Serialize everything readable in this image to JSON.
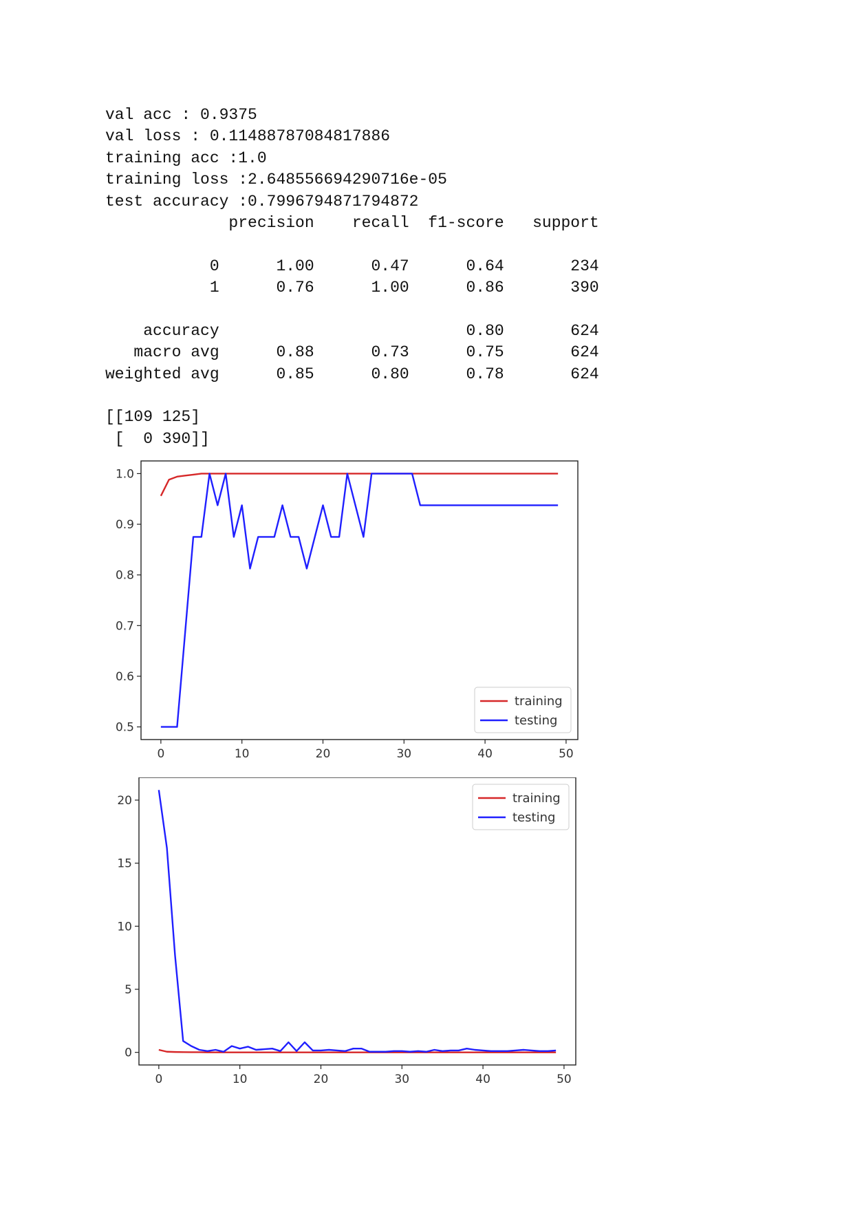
{
  "console": {
    "stats": [
      "val acc : 0.9375",
      "val loss : 0.11488787084817886",
      "training acc :1.0",
      "training loss :2.648556694290716e-05",
      "test accuracy :0.7996794871794872"
    ],
    "report": {
      "header": [
        "precision",
        "recall",
        "f1-score",
        "support"
      ],
      "rows": [
        {
          "label": "0",
          "precision": "1.00",
          "recall": "0.47",
          "f1": "0.64",
          "support": "234"
        },
        {
          "label": "1",
          "precision": "0.76",
          "recall": "1.00",
          "f1": "0.86",
          "support": "390"
        }
      ],
      "summary": [
        {
          "label": "accuracy",
          "precision": "",
          "recall": "",
          "f1": "0.80",
          "support": "624"
        },
        {
          "label": "macro avg",
          "precision": "0.88",
          "recall": "0.73",
          "f1": "0.75",
          "support": "624"
        },
        {
          "label": "weighted avg",
          "precision": "0.85",
          "recall": "0.80",
          "f1": "0.78",
          "support": "624"
        }
      ]
    },
    "matrix": [
      "[[109 125]",
      " [  0 390]]"
    ]
  },
  "chart_data": [
    {
      "type": "line",
      "title": "",
      "xlabel": "",
      "ylabel": "",
      "xlim": [
        -2.45,
        51.45
      ],
      "ylim": [
        0.475,
        1.025
      ],
      "xticks": [
        0,
        10,
        20,
        30,
        40,
        50
      ],
      "yticks": [
        0.5,
        0.6,
        0.7,
        0.8,
        0.9,
        1.0
      ],
      "ytick_labels": [
        "0.5",
        "0.6",
        "0.7",
        "0.8",
        "0.9",
        "1.0"
      ],
      "grid": false,
      "legend_position": "lower right",
      "x": [
        0,
        1,
        2,
        3,
        4,
        5,
        6,
        7,
        8,
        9,
        10,
        11,
        12,
        13,
        14,
        15,
        16,
        17,
        18,
        19,
        20,
        21,
        22,
        23,
        24,
        25,
        26,
        27,
        28,
        29,
        30,
        31,
        32,
        33,
        34,
        35,
        36,
        37,
        38,
        39,
        40,
        41,
        42,
        43,
        44,
        45,
        46,
        47,
        48,
        49
      ],
      "series": [
        {
          "name": "training",
          "color": "#d62728",
          "values": [
            0.956,
            0.988,
            0.994,
            0.996,
            0.998,
            1.0,
            1.0,
            1.0,
            1.0,
            1.0,
            1.0,
            1.0,
            1.0,
            1.0,
            1.0,
            1.0,
            1.0,
            1.0,
            1.0,
            1.0,
            1.0,
            1.0,
            1.0,
            1.0,
            1.0,
            1.0,
            1.0,
            1.0,
            1.0,
            1.0,
            1.0,
            1.0,
            1.0,
            1.0,
            1.0,
            1.0,
            1.0,
            1.0,
            1.0,
            1.0,
            1.0,
            1.0,
            1.0,
            1.0,
            1.0,
            1.0,
            1.0,
            1.0,
            1.0,
            1.0
          ]
        },
        {
          "name": "testing",
          "color": "#1f1fff",
          "values": [
            0.5,
            0.5,
            0.5,
            0.6875,
            0.875,
            0.875,
            1.0,
            0.9375,
            1.0,
            0.875,
            0.9375,
            0.8125,
            0.875,
            0.875,
            0.875,
            0.9375,
            0.875,
            0.875,
            0.8125,
            0.875,
            0.9375,
            0.875,
            0.875,
            1.0,
            0.9375,
            0.875,
            1.0,
            1.0,
            1.0,
            1.0,
            1.0,
            1.0,
            0.9375,
            0.9375,
            0.9375,
            0.9375,
            0.9375,
            0.9375,
            0.9375,
            0.9375,
            0.9375,
            0.9375,
            0.9375,
            0.9375,
            0.9375,
            0.9375,
            0.9375,
            0.9375,
            0.9375,
            0.9375
          ]
        }
      ]
    },
    {
      "type": "line",
      "title": "",
      "xlabel": "",
      "ylabel": "",
      "xlim": [
        -2.45,
        51.45
      ],
      "ylim": [
        -1.0,
        21.8
      ],
      "xticks": [
        0,
        10,
        20,
        30,
        40,
        50
      ],
      "yticks": [
        0,
        5,
        10,
        15,
        20
      ],
      "ytick_labels": [
        "0",
        "5",
        "10",
        "15",
        "20"
      ],
      "grid": false,
      "legend_position": "upper right",
      "x": [
        0,
        1,
        2,
        3,
        4,
        5,
        6,
        7,
        8,
        9,
        10,
        11,
        12,
        13,
        14,
        15,
        16,
        17,
        18,
        19,
        20,
        21,
        22,
        23,
        24,
        25,
        26,
        27,
        28,
        29,
        30,
        31,
        32,
        33,
        34,
        35,
        36,
        37,
        38,
        39,
        40,
        41,
        42,
        43,
        44,
        45,
        46,
        47,
        48,
        49
      ],
      "series": [
        {
          "name": "training",
          "color": "#d62728",
          "values": [
            0.2,
            0.05,
            0.03,
            0.02,
            0.01,
            0.01,
            0.0,
            0.0,
            0.0,
            0.0,
            0.0,
            0.0,
            0.0,
            0.0,
            0.0,
            0.0,
            0.0,
            0.0,
            0.0,
            0.0,
            0.0,
            0.0,
            0.0,
            0.0,
            0.0,
            0.0,
            0.0,
            0.0,
            0.0,
            0.0,
            0.0,
            0.0,
            0.0,
            0.0,
            0.0,
            0.0,
            0.0,
            0.0,
            0.0,
            0.0,
            0.0,
            0.0,
            0.0,
            0.0,
            0.0,
            0.0,
            0.0,
            0.0,
            0.0,
            0.0
          ]
        },
        {
          "name": "testing",
          "color": "#1f1fff",
          "values": [
            20.8,
            16.2,
            7.7,
            0.9,
            0.5,
            0.2,
            0.1,
            0.2,
            0.05,
            0.5,
            0.3,
            0.45,
            0.2,
            0.25,
            0.3,
            0.1,
            0.8,
            0.1,
            0.8,
            0.15,
            0.15,
            0.2,
            0.15,
            0.1,
            0.3,
            0.3,
            0.05,
            0.05,
            0.05,
            0.1,
            0.1,
            0.05,
            0.1,
            0.05,
            0.2,
            0.1,
            0.15,
            0.15,
            0.3,
            0.2,
            0.15,
            0.1,
            0.1,
            0.1,
            0.15,
            0.2,
            0.15,
            0.1,
            0.1,
            0.15
          ]
        }
      ]
    }
  ]
}
